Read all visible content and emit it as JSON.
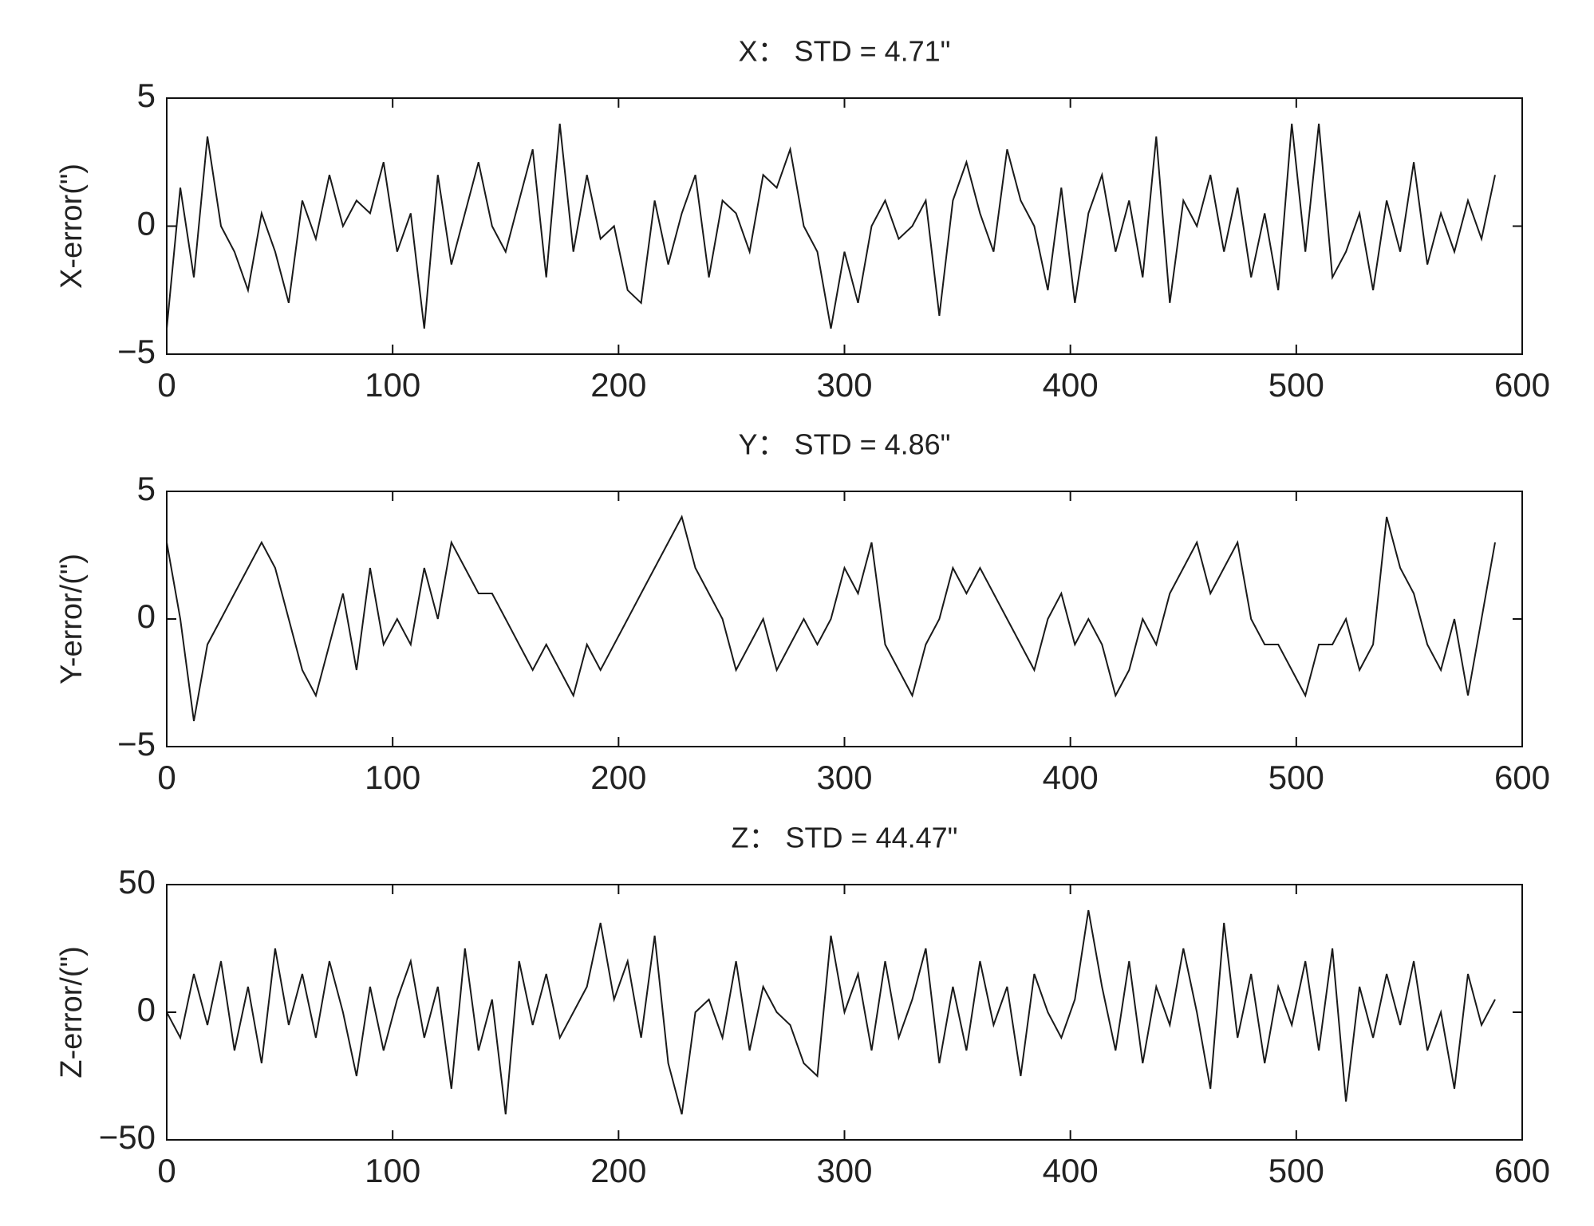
{
  "chart_data": [
    {
      "type": "line",
      "title": "X： STD = 4.71\"",
      "y_label": "X-error(\")",
      "color": "#1a1a1a",
      "x": [
        0,
        6,
        12,
        18,
        24,
        30,
        36,
        42,
        48,
        54,
        60,
        66,
        72,
        78,
        84,
        90,
        96,
        102,
        108,
        114,
        120,
        126,
        132,
        138,
        144,
        150,
        156,
        162,
        168,
        174,
        180,
        186,
        192,
        198,
        204,
        210,
        216,
        222,
        228,
        234,
        240,
        246,
        252,
        258,
        264,
        270,
        276,
        282,
        288,
        294,
        300,
        306,
        312,
        318,
        324,
        330,
        336,
        342,
        348,
        354,
        360,
        366,
        372,
        378,
        384,
        390,
        396,
        402,
        408,
        414,
        420,
        426,
        432,
        438,
        444,
        450,
        456,
        462,
        468,
        474,
        480,
        486,
        492,
        498,
        504,
        510,
        516,
        522,
        528,
        534,
        540,
        546,
        552,
        558,
        564,
        570,
        576,
        582,
        588
      ],
      "values": [
        -4,
        1.5,
        -2,
        3.5,
        0,
        -1,
        -2.5,
        0.5,
        -1,
        -3,
        1,
        -0.5,
        2,
        0,
        1,
        0.5,
        2.5,
        -1,
        0.5,
        -4,
        2,
        -1.5,
        0.5,
        2.5,
        0,
        -1,
        1,
        3,
        -2,
        4,
        -1,
        2,
        -0.5,
        0,
        -2.5,
        -3,
        1,
        -1.5,
        0.5,
        2,
        -2,
        1,
        0.5,
        -1,
        2,
        1.5,
        3,
        0,
        -1,
        -4,
        -1,
        -3,
        0,
        1,
        -0.5,
        0,
        1,
        -3.5,
        1,
        2.5,
        0.5,
        -1,
        3,
        1,
        0,
        -2.5,
        1.5,
        -3,
        0.5,
        2,
        -1,
        1,
        -2,
        3.5,
        -3,
        1,
        0,
        2,
        -1,
        1.5,
        -2,
        0.5,
        -2.5,
        4,
        -1,
        4,
        -2,
        -1,
        0.5,
        -2.5,
        1,
        -1,
        2.5,
        -1.5,
        0.5,
        -1,
        1,
        -0.5,
        2
      ],
      "xlim": [
        0,
        600
      ],
      "xticks": [
        0,
        100,
        200,
        300,
        400,
        500,
        600
      ],
      "ylim": [
        -5,
        5
      ],
      "yticks": [
        {
          "value": -5,
          "label": "−5"
        },
        0,
        5
      ]
    },
    {
      "type": "line",
      "title": "Y： STD = 4.86\"",
      "y_label": "Y-error/(\")",
      "color": "#1a1a1a",
      "x": [
        0,
        6,
        12,
        18,
        24,
        30,
        36,
        42,
        48,
        54,
        60,
        66,
        72,
        78,
        84,
        90,
        96,
        102,
        108,
        114,
        120,
        126,
        132,
        138,
        144,
        150,
        156,
        162,
        168,
        174,
        180,
        186,
        192,
        198,
        204,
        210,
        216,
        222,
        228,
        234,
        240,
        246,
        252,
        258,
        264,
        270,
        276,
        282,
        288,
        294,
        300,
        306,
        312,
        318,
        324,
        330,
        336,
        342,
        348,
        354,
        360,
        366,
        372,
        378,
        384,
        390,
        396,
        402,
        408,
        414,
        420,
        426,
        432,
        438,
        444,
        450,
        456,
        462,
        468,
        474,
        480,
        486,
        492,
        498,
        504,
        510,
        516,
        522,
        528,
        534,
        540,
        546,
        552,
        558,
        564,
        570,
        576,
        582,
        588
      ],
      "values": [
        3,
        0,
        -4,
        -1,
        0,
        1,
        2,
        3,
        2,
        0,
        -2,
        -3,
        -1,
        1,
        -2,
        2,
        -1,
        0,
        -1,
        2,
        0,
        3,
        2,
        1,
        1,
        0,
        -1,
        -2,
        -1,
        -2,
        -3,
        -1,
        -2,
        -1,
        0,
        1,
        2,
        3,
        4,
        2,
        1,
        0,
        -2,
        -1,
        0,
        -2,
        -1,
        0,
        -1,
        0,
        2,
        1,
        3,
        -1,
        -2,
        -3,
        -1,
        0,
        2,
        1,
        2,
        1,
        0,
        -1,
        -2,
        0,
        1,
        -1,
        0,
        -1,
        -3,
        -2,
        0,
        -1,
        1,
        2,
        3,
        1,
        2,
        3,
        0,
        -1,
        -1,
        -2,
        -3,
        -1,
        -1,
        0,
        -2,
        -1,
        4,
        2,
        1,
        -1,
        -2,
        0,
        -3,
        0,
        3
      ],
      "xlim": [
        0,
        600
      ],
      "xticks": [
        0,
        100,
        200,
        300,
        400,
        500,
        600
      ],
      "ylim": [
        -5,
        5
      ],
      "yticks": [
        {
          "value": -5,
          "label": "−5"
        },
        0,
        5
      ]
    },
    {
      "type": "line",
      "title": "Z： STD = 44.47\"",
      "y_label": "Z-error/(\")",
      "color": "#1a1a1a",
      "x": [
        0,
        6,
        12,
        18,
        24,
        30,
        36,
        42,
        48,
        54,
        60,
        66,
        72,
        78,
        84,
        90,
        96,
        102,
        108,
        114,
        120,
        126,
        132,
        138,
        144,
        150,
        156,
        162,
        168,
        174,
        180,
        186,
        192,
        198,
        204,
        210,
        216,
        222,
        228,
        234,
        240,
        246,
        252,
        258,
        264,
        270,
        276,
        282,
        288,
        294,
        300,
        306,
        312,
        318,
        324,
        330,
        336,
        342,
        348,
        354,
        360,
        366,
        372,
        378,
        384,
        390,
        396,
        402,
        408,
        414,
        420,
        426,
        432,
        438,
        444,
        450,
        456,
        462,
        468,
        474,
        480,
        486,
        492,
        498,
        504,
        510,
        516,
        522,
        528,
        534,
        540,
        546,
        552,
        558,
        564,
        570,
        576,
        582,
        588
      ],
      "values": [
        0,
        -10,
        15,
        -5,
        20,
        -15,
        10,
        -20,
        25,
        -5,
        15,
        -10,
        20,
        0,
        -25,
        10,
        -15,
        5,
        20,
        -10,
        10,
        -30,
        25,
        -15,
        5,
        -40,
        20,
        -5,
        15,
        -10,
        0,
        10,
        35,
        5,
        20,
        -10,
        30,
        -20,
        -40,
        0,
        5,
        -10,
        20,
        -15,
        10,
        0,
        -5,
        -20,
        -25,
        30,
        0,
        15,
        -15,
        20,
        -10,
        5,
        25,
        -20,
        10,
        -15,
        20,
        -5,
        10,
        -25,
        15,
        0,
        -10,
        5,
        40,
        10,
        -15,
        20,
        -20,
        10,
        -5,
        25,
        0,
        -30,
        35,
        -10,
        15,
        -20,
        10,
        -5,
        20,
        -15,
        25,
        -35,
        10,
        -10,
        15,
        -5,
        20,
        -15,
        0,
        -30,
        15,
        -5,
        5
      ],
      "xlim": [
        0,
        600
      ],
      "xticks": [
        0,
        100,
        200,
        300,
        400,
        500,
        600
      ],
      "ylim": [
        -50,
        50
      ],
      "yticks": [
        {
          "value": -50,
          "label": "−50"
        },
        0,
        50
      ]
    }
  ]
}
